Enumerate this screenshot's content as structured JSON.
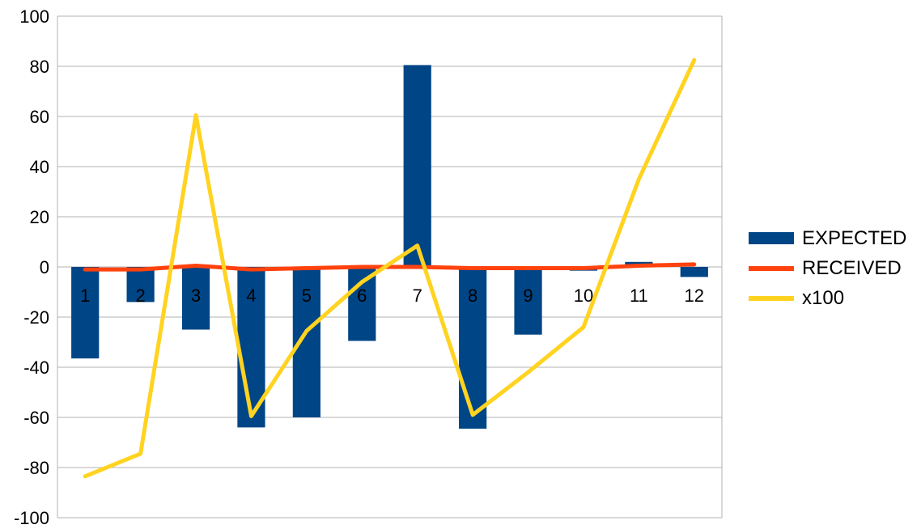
{
  "chart_data": {
    "type": "bar",
    "categories": [
      "1",
      "2",
      "3",
      "4",
      "5",
      "6",
      "7",
      "8",
      "9",
      "10",
      "11",
      "12"
    ],
    "series": [
      {
        "name": "EXPECTED",
        "type": "bar",
        "color": "#004586",
        "values": [
          -36.5,
          -14,
          -25,
          -64,
          -60,
          -29.5,
          80.5,
          -64.5,
          -27,
          -1.5,
          2,
          -4
        ]
      },
      {
        "name": "RECEIVED",
        "type": "line",
        "color": "#ff420e",
        "values": [
          -1,
          -1,
          0.5,
          -1,
          -0.5,
          0,
          0,
          -0.5,
          -0.5,
          -0.5,
          0.5,
          1
        ]
      },
      {
        "name": "x100",
        "type": "line",
        "color": "#ffd320",
        "values": [
          -83.5,
          -74.5,
          60.5,
          -59.5,
          -25.5,
          -6,
          8.5,
          -59,
          -42,
          -24,
          35,
          82.5
        ]
      }
    ],
    "ylim": [
      -100,
      100
    ],
    "yticks": [
      "100",
      "80",
      "60",
      "40",
      "20",
      "0",
      "-20",
      "-40",
      "-60",
      "-80",
      "-100"
    ],
    "grid": true,
    "legend_position": "right"
  }
}
